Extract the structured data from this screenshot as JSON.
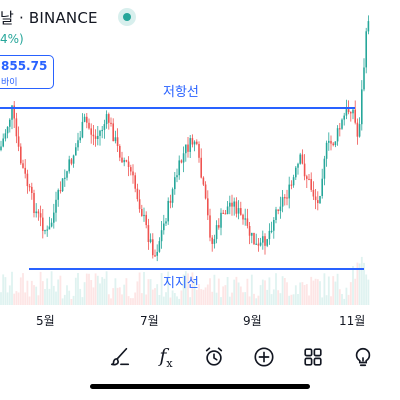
{
  "header": {
    "title": "날 · BINANCE",
    "change": "4%)",
    "price_label": "855.75",
    "price_sub": "바이"
  },
  "annotations": {
    "resistance_label": "저항선",
    "support_label": "지지선"
  },
  "colors": {
    "up": "#26a69a",
    "down": "#ef5350",
    "line": "#2962ff",
    "volume_up": "rgba(38,166,154,0.15)",
    "volume_down": "rgba(239,83,80,0.15)"
  },
  "xaxis": {
    "ticks": [
      "5월",
      "7월",
      "9월",
      "11월"
    ]
  },
  "toolbar": {
    "items": [
      {
        "icon": "brush-icon"
      },
      {
        "icon": "function-icon",
        "label": "f",
        "sub": "x"
      },
      {
        "icon": "alarm-icon"
      },
      {
        "icon": "plus-circle-icon"
      },
      {
        "icon": "grid-icon"
      },
      {
        "icon": "lightbulb-icon"
      }
    ]
  }
}
